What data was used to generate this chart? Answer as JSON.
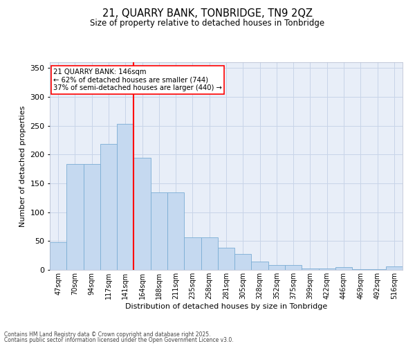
{
  "title1": "21, QUARRY BANK, TONBRIDGE, TN9 2QZ",
  "title2": "Size of property relative to detached houses in Tonbridge",
  "xlabel": "Distribution of detached houses by size in Tonbridge",
  "ylabel": "Number of detached properties",
  "categories": [
    "47sqm",
    "70sqm",
    "94sqm",
    "117sqm",
    "141sqm",
    "164sqm",
    "188sqm",
    "211sqm",
    "235sqm",
    "258sqm",
    "281sqm",
    "305sqm",
    "328sqm",
    "352sqm",
    "375sqm",
    "399sqm",
    "422sqm",
    "446sqm",
    "469sqm",
    "492sqm",
    "516sqm"
  ],
  "values": [
    48,
    184,
    184,
    218,
    253,
    195,
    135,
    135,
    57,
    57,
    38,
    28,
    15,
    8,
    8,
    3,
    2,
    5,
    1,
    1,
    6
  ],
  "bar_color": "#c5d9f0",
  "bar_edge_color": "#7aadd4",
  "grid_color": "#c8d4e8",
  "background_color": "#e8eef8",
  "vline_x": 4.5,
  "vline_color": "red",
  "annotation_text": "21 QUARRY BANK: 146sqm\n← 62% of detached houses are smaller (744)\n37% of semi-detached houses are larger (440) →",
  "annotation_box_color": "white",
  "annotation_box_edge": "red",
  "footer1": "Contains HM Land Registry data © Crown copyright and database right 2025.",
  "footer2": "Contains public sector information licensed under the Open Government Licence v3.0.",
  "ylim": [
    0,
    360
  ],
  "yticks": [
    0,
    50,
    100,
    150,
    200,
    250,
    300,
    350
  ]
}
